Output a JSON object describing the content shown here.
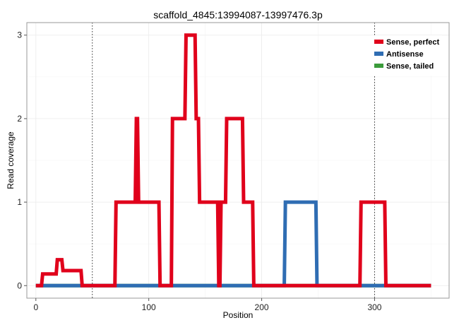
{
  "chart_data": {
    "type": "line",
    "title": "scaffold_4845:13994087-13997476.3p",
    "xlabel": "Position",
    "ylabel": "Read coverage",
    "xlim": [
      -8,
      366
    ],
    "ylim": [
      -0.15,
      3.15
    ],
    "x_ticks": [
      0,
      100,
      200,
      300
    ],
    "y_ticks": [
      0,
      1,
      2,
      3
    ],
    "grid": true,
    "legend_position": "top-right",
    "vlines": [
      50,
      300
    ],
    "series": [
      {
        "name": "Sense, perfect",
        "color": "#e0001b",
        "x": [
          0,
          5,
          6,
          18,
          19,
          23,
          24,
          40,
          41,
          70,
          71,
          88,
          89,
          90,
          91,
          92,
          93,
          109,
          110,
          120,
          121,
          132,
          133,
          141,
          142,
          144,
          145,
          161,
          162,
          163,
          164,
          168,
          169,
          183,
          184,
          192,
          193,
          287,
          288,
          309,
          310,
          350
        ],
        "y": [
          0,
          0,
          0.14,
          0.14,
          0.31,
          0.31,
          0.18,
          0.18,
          0,
          0,
          1,
          1,
          2,
          2,
          1,
          1,
          1,
          1,
          0,
          0,
          2,
          2,
          3,
          3,
          2,
          2,
          1,
          1,
          0,
          0,
          1,
          1,
          2,
          2,
          1,
          1,
          0,
          0,
          1,
          1,
          0,
          0
        ]
      },
      {
        "name": "Antisense",
        "color": "#2f6db3",
        "x": [
          0,
          220,
          221,
          248,
          249,
          350
        ],
        "y": [
          0,
          0,
          1,
          1,
          0,
          0
        ]
      },
      {
        "name": "Sense, tailed",
        "color": "#3b9b3b",
        "x": [
          0,
          350
        ],
        "y": [
          0,
          0
        ]
      }
    ]
  }
}
